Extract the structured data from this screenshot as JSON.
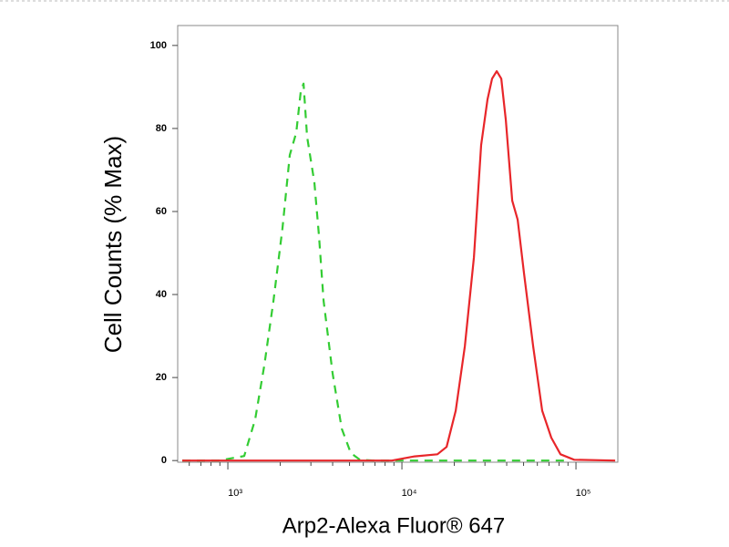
{
  "chart_data": {
    "type": "line",
    "xlabel": "Arp2-Alexa Fluor® 647",
    "ylabel": "Cell Counts (% Max)",
    "xscale": "log",
    "xlim": [
      515,
      174000
    ],
    "ylim": [
      -0.4,
      104.8
    ],
    "xticks": [
      {
        "value": 1000,
        "label": "10³"
      },
      {
        "value": 10000,
        "label": "10⁴"
      },
      {
        "value": 100000,
        "label": "10⁵"
      }
    ],
    "xminorticks": [
      600,
      700,
      800,
      900,
      2000,
      3000,
      4000,
      5000,
      6000,
      7000,
      8000,
      9000,
      20000,
      30000,
      40000,
      50000,
      60000,
      70000,
      80000,
      90000
    ],
    "yticks": [
      0,
      20,
      40,
      60,
      80,
      100
    ],
    "series": [
      {
        "color": "#33cc33",
        "dash": true,
        "x": [
          547,
          887,
          1242,
          1435,
          1620,
          1828,
          2061,
          2270,
          2470,
          2625,
          2722,
          2853,
          3141,
          3340,
          3548,
          4000,
          4510,
          5090,
          5740,
          6880,
          86500
        ],
        "values": [
          0,
          0,
          1.1,
          9.9,
          23,
          38.5,
          56,
          73.6,
          79,
          89,
          90.8,
          78,
          67,
          54,
          38.5,
          21,
          7.7,
          1.8,
          0.2,
          0,
          0
        ]
      },
      {
        "color": "#e8262a",
        "dash": false,
        "x": [
          547,
          8750,
          11830,
          16000,
          18060,
          20380,
          22980,
          25940,
          28530,
          31030,
          32970,
          35060,
          37220,
          39540,
          43050,
          46260,
          50320,
          56800,
          64000,
          72200,
          81500,
          97700,
          168000
        ],
        "values": [
          0,
          0,
          1,
          1.5,
          3.3,
          12,
          27.5,
          49,
          76,
          87,
          92,
          93.8,
          92,
          82,
          62.6,
          58,
          45,
          27.5,
          12,
          5.5,
          1.5,
          0.2,
          0
        ]
      }
    ]
  }
}
